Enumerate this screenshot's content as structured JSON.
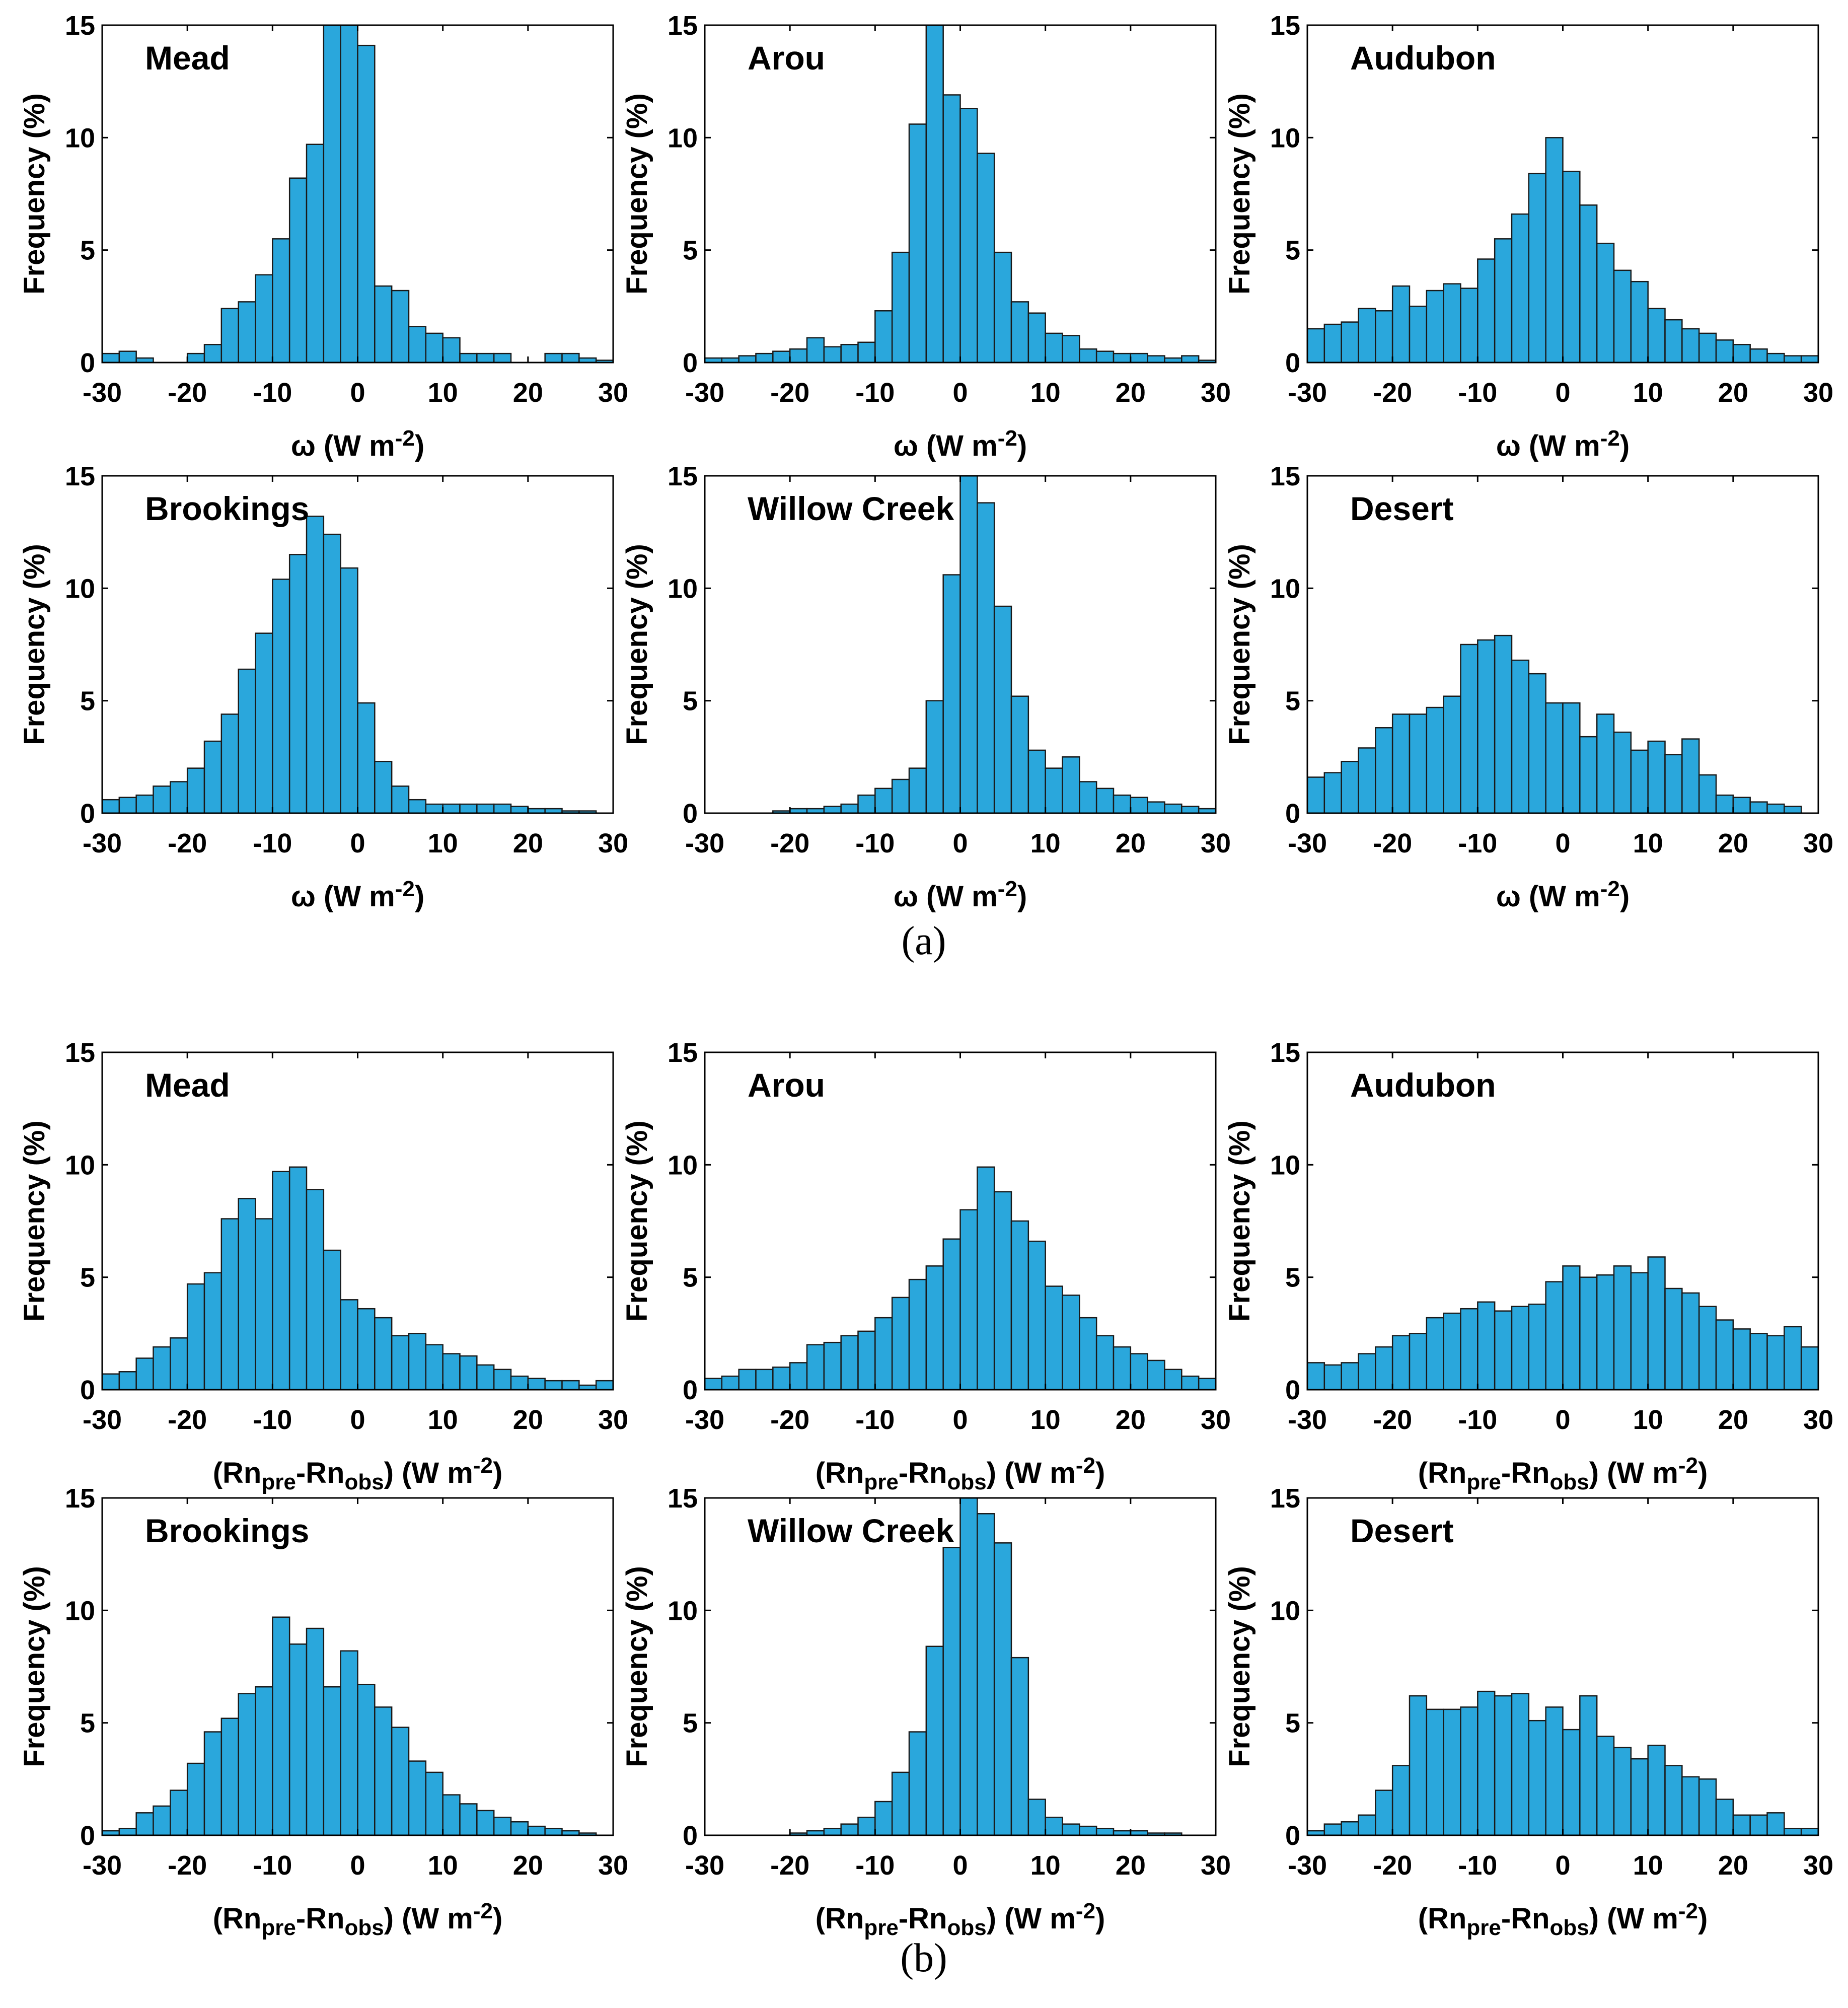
{
  "figure": {
    "panel_labels": [
      "(a)",
      "(b)"
    ]
  },
  "colors": {
    "bar_fill": "#2aa7dc",
    "bar_edge": "#1a1a1a",
    "axis": "#000000",
    "background": "#ffffff"
  },
  "chart_data": [
    {
      "type": "bar",
      "group": "(a)",
      "title": "Mead",
      "ylabel": "Frequency (%)",
      "xlabel": {
        "main": "ω (W m",
        "sup": "-2",
        "tail": ")"
      },
      "xlim": [
        -30,
        30
      ],
      "ylim": [
        0,
        15
      ],
      "bin_width": 2,
      "xticks": [
        -30,
        -20,
        -10,
        0,
        10,
        20,
        30
      ],
      "yticks": [
        0,
        5,
        10,
        15
      ],
      "values": [
        0.4,
        0.5,
        0.2,
        0.0,
        0.0,
        0.4,
        0.8,
        2.4,
        2.7,
        3.9,
        5.5,
        8.2,
        9.7,
        15.0,
        15.0,
        14.1,
        3.4,
        3.2,
        1.6,
        1.3,
        1.1,
        0.4,
        0.4,
        0.4,
        0.0,
        0.0,
        0.4,
        0.4,
        0.2,
        0.1
      ]
    },
    {
      "type": "bar",
      "group": "(a)",
      "title": "Arou",
      "ylabel": "Frequency (%)",
      "xlabel": {
        "main": "ω (W m",
        "sup": "-2",
        "tail": ")"
      },
      "xlim": [
        -30,
        30
      ],
      "ylim": [
        0,
        15
      ],
      "bin_width": 2,
      "xticks": [
        -30,
        -20,
        -10,
        0,
        10,
        20,
        30
      ],
      "yticks": [
        0,
        5,
        10,
        15
      ],
      "values": [
        0.2,
        0.2,
        0.3,
        0.4,
        0.5,
        0.6,
        1.1,
        0.7,
        0.8,
        0.9,
        2.3,
        4.9,
        10.6,
        15.0,
        11.9,
        11.3,
        9.3,
        4.9,
        2.7,
        2.2,
        1.3,
        1.2,
        0.6,
        0.5,
        0.4,
        0.4,
        0.3,
        0.2,
        0.3,
        0.1
      ]
    },
    {
      "type": "bar",
      "group": "(a)",
      "title": "Audubon",
      "ylabel": "Frequency (%)",
      "xlabel": {
        "main": "ω (W m",
        "sup": "-2",
        "tail": ")"
      },
      "xlim": [
        -30,
        30
      ],
      "ylim": [
        0,
        15
      ],
      "bin_width": 2,
      "xticks": [
        -30,
        -20,
        -10,
        0,
        10,
        20,
        30
      ],
      "yticks": [
        0,
        5,
        10,
        15
      ],
      "values": [
        1.5,
        1.7,
        1.8,
        2.4,
        2.3,
        3.4,
        2.5,
        3.2,
        3.5,
        3.3,
        4.6,
        5.5,
        6.6,
        8.4,
        10.0,
        8.5,
        7.0,
        5.3,
        4.1,
        3.6,
        2.4,
        1.9,
        1.5,
        1.3,
        1.0,
        0.8,
        0.6,
        0.4,
        0.3,
        0.3
      ]
    },
    {
      "type": "bar",
      "group": "(a)",
      "title": "Brookings",
      "ylabel": "Frequency (%)",
      "xlabel": {
        "main": "ω (W m",
        "sup": "-2",
        "tail": ")"
      },
      "xlim": [
        -30,
        30
      ],
      "ylim": [
        0,
        15
      ],
      "bin_width": 2,
      "xticks": [
        -30,
        -20,
        -10,
        0,
        10,
        20,
        30
      ],
      "yticks": [
        0,
        5,
        10,
        15
      ],
      "values": [
        0.6,
        0.7,
        0.8,
        1.2,
        1.4,
        2.0,
        3.2,
        4.4,
        6.4,
        8.0,
        10.4,
        11.5,
        13.2,
        12.4,
        10.9,
        4.9,
        2.3,
        1.2,
        0.6,
        0.4,
        0.4,
        0.4,
        0.4,
        0.4,
        0.3,
        0.2,
        0.2,
        0.1,
        0.1,
        0.0
      ]
    },
    {
      "type": "bar",
      "group": "(a)",
      "title": "Willow Creek",
      "ylabel": "Frequency (%)",
      "xlabel": {
        "main": "ω (W m",
        "sup": "-2",
        "tail": ")"
      },
      "xlim": [
        -30,
        30
      ],
      "ylim": [
        0,
        15
      ],
      "bin_width": 2,
      "xticks": [
        -30,
        -20,
        -10,
        0,
        10,
        20,
        30
      ],
      "yticks": [
        0,
        5,
        10,
        15
      ],
      "values": [
        0.0,
        0.0,
        0.0,
        0.0,
        0.1,
        0.2,
        0.2,
        0.3,
        0.4,
        0.8,
        1.1,
        1.5,
        2.0,
        5.0,
        10.6,
        15.0,
        13.8,
        9.2,
        5.2,
        2.8,
        2.0,
        2.5,
        1.4,
        1.1,
        0.8,
        0.7,
        0.5,
        0.4,
        0.3,
        0.2
      ]
    },
    {
      "type": "bar",
      "group": "(a)",
      "title": "Desert",
      "ylabel": "Frequency (%)",
      "xlabel": {
        "main": "ω (W m",
        "sup": "-2",
        "tail": ")"
      },
      "xlim": [
        -30,
        30
      ],
      "ylim": [
        0,
        15
      ],
      "bin_width": 2,
      "xticks": [
        -30,
        -20,
        -10,
        0,
        10,
        20,
        30
      ],
      "yticks": [
        0,
        5,
        10,
        15
      ],
      "values": [
        1.6,
        1.8,
        2.3,
        2.9,
        3.8,
        4.4,
        4.4,
        4.7,
        5.2,
        7.5,
        7.7,
        7.9,
        6.8,
        6.2,
        4.9,
        4.9,
        3.4,
        4.4,
        3.6,
        2.8,
        3.2,
        2.6,
        3.3,
        1.7,
        0.8,
        0.7,
        0.5,
        0.4,
        0.3,
        0.0
      ]
    },
    {
      "type": "bar",
      "group": "(b)",
      "title": "Mead",
      "ylabel": "Frequency (%)",
      "xlabel": {
        "main": "(Rn",
        "sub1": "pre",
        "mid": "-Rn",
        "sub2": "obs",
        "mid2": ") (W m",
        "sup": "-2",
        "tail": ")"
      },
      "xlim": [
        -30,
        30
      ],
      "ylim": [
        0,
        15
      ],
      "bin_width": 2,
      "xticks": [
        -30,
        -20,
        -10,
        0,
        10,
        20,
        30
      ],
      "yticks": [
        0,
        5,
        10,
        15
      ],
      "values": [
        0.7,
        0.8,
        1.4,
        1.9,
        2.3,
        4.7,
        5.2,
        7.6,
        8.5,
        7.6,
        9.7,
        9.9,
        8.9,
        6.2,
        4.0,
        3.6,
        3.2,
        2.4,
        2.5,
        2.0,
        1.6,
        1.5,
        1.1,
        0.9,
        0.6,
        0.5,
        0.4,
        0.4,
        0.2,
        0.4
      ]
    },
    {
      "type": "bar",
      "group": "(b)",
      "title": "Arou",
      "ylabel": "Frequency (%)",
      "xlabel": {
        "main": "(Rn",
        "sub1": "pre",
        "mid": "-Rn",
        "sub2": "obs",
        "mid2": ") (W m",
        "sup": "-2",
        "tail": ")"
      },
      "xlim": [
        -30,
        30
      ],
      "ylim": [
        0,
        15
      ],
      "bin_width": 2,
      "xticks": [
        -30,
        -20,
        -10,
        0,
        10,
        20,
        30
      ],
      "yticks": [
        0,
        5,
        10,
        15
      ],
      "values": [
        0.5,
        0.6,
        0.9,
        0.9,
        1.0,
        1.2,
        2.0,
        2.1,
        2.4,
        2.6,
        3.2,
        4.1,
        4.9,
        5.5,
        6.7,
        8.0,
        9.9,
        8.8,
        7.5,
        6.6,
        4.6,
        4.2,
        3.2,
        2.4,
        1.9,
        1.6,
        1.3,
        0.9,
        0.6,
        0.5
      ]
    },
    {
      "type": "bar",
      "group": "(b)",
      "title": "Audubon",
      "ylabel": "Frequency (%)",
      "xlabel": {
        "main": "(Rn",
        "sub1": "pre",
        "mid": "-Rn",
        "sub2": "obs",
        "mid2": ") (W m",
        "sup": "-2",
        "tail": ")"
      },
      "xlim": [
        -30,
        30
      ],
      "ylim": [
        0,
        15
      ],
      "bin_width": 2,
      "xticks": [
        -30,
        -20,
        -10,
        0,
        10,
        20,
        30
      ],
      "yticks": [
        0,
        5,
        10,
        15
      ],
      "values": [
        1.2,
        1.1,
        1.2,
        1.6,
        1.9,
        2.4,
        2.5,
        3.2,
        3.4,
        3.6,
        3.9,
        3.5,
        3.7,
        3.8,
        4.8,
        5.5,
        5.0,
        5.1,
        5.5,
        5.2,
        5.9,
        4.5,
        4.3,
        3.7,
        3.1,
        2.7,
        2.5,
        2.4,
        2.8,
        1.9
      ]
    },
    {
      "type": "bar",
      "group": "(b)",
      "title": "Brookings",
      "ylabel": "Frequency (%)",
      "xlabel": {
        "main": "(Rn",
        "sub1": "pre",
        "mid": "-Rn",
        "sub2": "obs",
        "mid2": ") (W m",
        "sup": "-2",
        "tail": ")"
      },
      "xlim": [
        -30,
        30
      ],
      "ylim": [
        0,
        15
      ],
      "bin_width": 2,
      "xticks": [
        -30,
        -20,
        -10,
        0,
        10,
        20,
        30
      ],
      "yticks": [
        0,
        5,
        10,
        15
      ],
      "values": [
        0.2,
        0.3,
        1.0,
        1.3,
        2.0,
        3.2,
        4.6,
        5.2,
        6.3,
        6.6,
        9.7,
        8.5,
        9.2,
        6.6,
        8.2,
        6.7,
        5.7,
        4.8,
        3.3,
        2.8,
        1.8,
        1.4,
        1.1,
        0.8,
        0.6,
        0.4,
        0.3,
        0.2,
        0.1,
        0.0
      ]
    },
    {
      "type": "bar",
      "group": "(b)",
      "title": "Willow Creek",
      "ylabel": "Frequency (%)",
      "xlabel": {
        "main": "(Rn",
        "sub1": "pre",
        "mid": "-Rn",
        "sub2": "obs",
        "mid2": ") (W m",
        "sup": "-2",
        "tail": ")"
      },
      "xlim": [
        -30,
        30
      ],
      "ylim": [
        0,
        15
      ],
      "bin_width": 2,
      "xticks": [
        -30,
        -20,
        -10,
        0,
        10,
        20,
        30
      ],
      "yticks": [
        0,
        5,
        10,
        15
      ],
      "values": [
        0.0,
        0.0,
        0.0,
        0.0,
        0.0,
        0.1,
        0.2,
        0.3,
        0.5,
        0.8,
        1.5,
        2.8,
        4.6,
        8.4,
        12.8,
        15.0,
        14.3,
        13.0,
        7.9,
        1.6,
        0.8,
        0.5,
        0.4,
        0.3,
        0.2,
        0.2,
        0.1,
        0.1,
        0.0,
        0.0
      ]
    },
    {
      "type": "bar",
      "group": "(b)",
      "title": "Desert",
      "ylabel": "Frequency (%)",
      "xlabel": {
        "main": "(Rn",
        "sub1": "pre",
        "mid": "-Rn",
        "sub2": "obs",
        "mid2": ") (W m",
        "sup": "-2",
        "tail": ")"
      },
      "xlim": [
        -30,
        30
      ],
      "ylim": [
        0,
        15
      ],
      "bin_width": 2,
      "xticks": [
        -30,
        -20,
        -10,
        0,
        10,
        20,
        30
      ],
      "yticks": [
        0,
        5,
        10,
        15
      ],
      "values": [
        0.2,
        0.5,
        0.6,
        0.9,
        2.0,
        3.1,
        6.2,
        5.6,
        5.6,
        5.7,
        6.4,
        6.2,
        6.3,
        5.1,
        5.7,
        4.7,
        6.2,
        4.4,
        3.9,
        3.4,
        4.0,
        3.1,
        2.6,
        2.5,
        1.6,
        0.9,
        0.9,
        1.0,
        0.3,
        0.3
      ]
    }
  ]
}
